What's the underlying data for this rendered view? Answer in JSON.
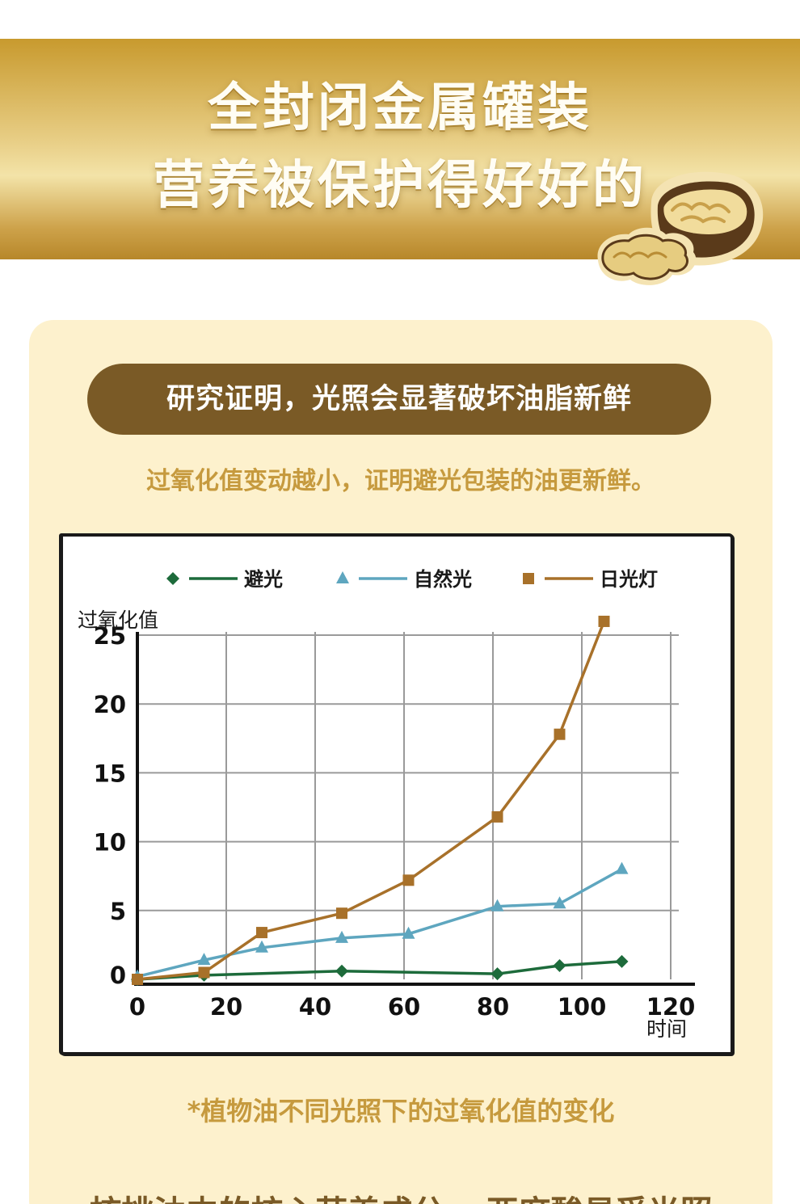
{
  "banner": {
    "line1": "全封闭金属罐装",
    "line2": "营养被保护得好好的"
  },
  "section": {
    "pill_title": "研究证明，光照会显著破坏油脂新鲜",
    "subtitle": "过氧化值变动越小，证明避光包装的油更新鲜。",
    "caption": "*植物油不同光照下的过氧化值的变化",
    "bottom_text": "核桃油中的核心营养成分ω-亚麻酸易受光照"
  },
  "colors": {
    "dark": "#1d6b3b",
    "natural": "#5ea6bf",
    "fluorescent": "#a8712a",
    "pill": "#7a5a26",
    "accent_text": "#c69a3e"
  },
  "chart_data": {
    "type": "line",
    "ylabel": "过氧化值",
    "xlabel": "时间",
    "xlim": [
      0,
      120
    ],
    "ylim": [
      0,
      25
    ],
    "x_ticks": [
      "0",
      "20",
      "40",
      "60",
      "80",
      "100",
      "120"
    ],
    "y_ticks": [
      "0",
      "5",
      "10",
      "15",
      "20",
      "25"
    ],
    "grid": true,
    "legend_position": "top",
    "series": [
      {
        "name": "避光",
        "marker": "diamond",
        "points": [
          [
            0,
            0
          ],
          [
            15,
            0.3
          ],
          [
            46,
            0.6
          ],
          [
            81,
            0.4
          ],
          [
            95,
            1.0
          ],
          [
            109,
            1.3
          ]
        ]
      },
      {
        "name": "自然光",
        "marker": "triangle",
        "points": [
          [
            0,
            0.2
          ],
          [
            15,
            1.4
          ],
          [
            28,
            2.3
          ],
          [
            46,
            3.0
          ],
          [
            61,
            3.3
          ],
          [
            81,
            5.3
          ],
          [
            95,
            5.5
          ],
          [
            109,
            8.0
          ]
        ]
      },
      {
        "name": "日光灯",
        "marker": "square",
        "points": [
          [
            0,
            0
          ],
          [
            15,
            0.5
          ],
          [
            28,
            3.4
          ],
          [
            46,
            4.8
          ],
          [
            61,
            7.2
          ],
          [
            81,
            11.8
          ],
          [
            95,
            17.8
          ],
          [
            105,
            26
          ]
        ]
      }
    ]
  }
}
